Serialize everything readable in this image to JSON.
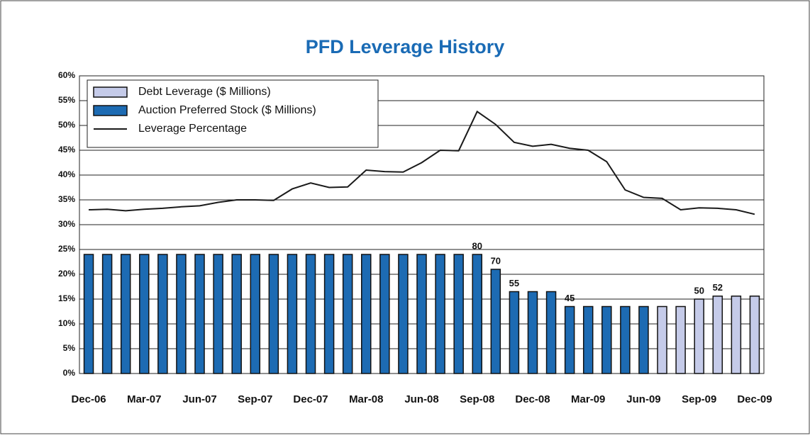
{
  "chart_data": {
    "type": "bar-line",
    "title": "PFD Leverage History",
    "categories": [
      "Dec-06",
      null,
      null,
      "Mar-07",
      null,
      null,
      "Jun-07",
      null,
      null,
      "Sep-07",
      null,
      null,
      "Dec-07",
      null,
      null,
      "Mar-08",
      null,
      null,
      "Jun-08",
      null,
      null,
      "Sep-08",
      null,
      null,
      "Dec-08",
      null,
      null,
      "Mar-09",
      null,
      null,
      "Jun-09",
      null,
      null,
      "Sep-09",
      null,
      null,
      "Dec-09"
    ],
    "ylim": [
      0,
      60
    ],
    "yticks": [
      {
        "value": 0,
        "label": "0%"
      },
      {
        "value": 5,
        "label": "5%"
      },
      {
        "value": 10,
        "label": "10%"
      },
      {
        "value": 15,
        "label": "15%"
      },
      {
        "value": 20,
        "label": "20%"
      },
      {
        "value": 25,
        "label": "25%"
      },
      {
        "value": 30,
        "label": "30%"
      },
      {
        "value": 35,
        "label": "35%"
      },
      {
        "value": 40,
        "label": "40%"
      },
      {
        "value": 45,
        "label": "45%"
      },
      {
        "value": 50,
        "label": "50%"
      },
      {
        "value": 55,
        "label": "55%"
      },
      {
        "value": 60,
        "label": "60%"
      }
    ],
    "y2lim": [
      0,
      200
    ],
    "grid": true,
    "legend": "top-left",
    "series": [
      {
        "name": "Debt Leverage ($ Millions)",
        "type": "bar",
        "axis": "y2",
        "color": "#c5cbe9",
        "values": [
          null,
          null,
          null,
          null,
          null,
          null,
          null,
          null,
          null,
          null,
          null,
          null,
          null,
          null,
          null,
          null,
          null,
          null,
          null,
          null,
          null,
          null,
          null,
          null,
          null,
          null,
          null,
          null,
          null,
          null,
          null,
          45,
          45,
          50,
          52,
          52,
          52
        ],
        "labeled": [
          33,
          34
        ]
      },
      {
        "name": "Auction Preferred Stock ($ Millions)",
        "type": "bar",
        "axis": "y2",
        "color": "#1d6bb3",
        "values": [
          80,
          80,
          80,
          80,
          80,
          80,
          80,
          80,
          80,
          80,
          80,
          80,
          80,
          80,
          80,
          80,
          80,
          80,
          80,
          80,
          80,
          80,
          70,
          55,
          55,
          55,
          45,
          45,
          45,
          45,
          45,
          null,
          null,
          null,
          null,
          null,
          null
        ],
        "labeled": [
          21,
          22,
          23,
          26
        ]
      },
      {
        "name": "Leverage Percentage",
        "type": "line",
        "color": "#1a1a1a",
        "values": [
          33,
          33.1,
          32.8,
          33.1,
          33.3,
          33.6,
          33.8,
          34.5,
          35,
          35,
          34.9,
          37.2,
          38.4,
          37.5,
          37.6,
          41,
          40.7,
          40.6,
          42.5,
          45,
          44.9,
          52.8,
          50.2,
          46.6,
          45.8,
          46.2,
          45.4,
          45,
          42.7,
          37,
          35.5,
          35.3,
          33,
          33.4,
          33.3,
          33,
          32.1
        ]
      }
    ]
  }
}
